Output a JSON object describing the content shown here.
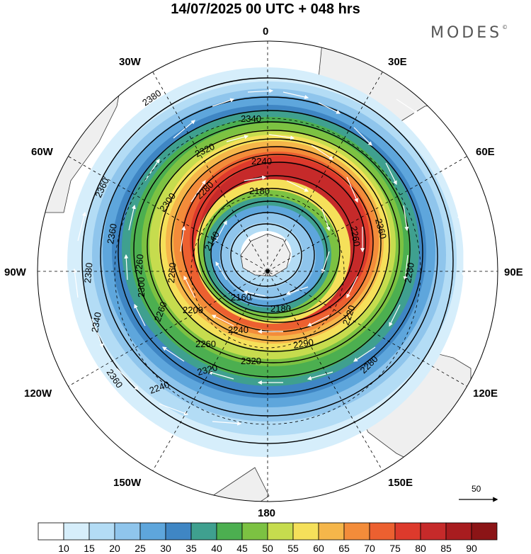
{
  "title": "14/07/2025  00 UTC  + 048 hrs",
  "brand": "MODES",
  "brand_mark": "©",
  "longitude_labels": {
    "l0": "0",
    "l30e": "30E",
    "l60e": "60E",
    "l90e": "90E",
    "l120e": "120E",
    "l150e": "150E",
    "l180": "180",
    "l150w": "150W",
    "l120w": "120W",
    "l90w": "90W",
    "l60w": "60W",
    "l30w": "30W"
  },
  "contour_labels": [
    "2380",
    "2340",
    "2320",
    "2240",
    "2180",
    "2360",
    "2360",
    "2300",
    "2280",
    "2140",
    "2360",
    "2260",
    "2300",
    "2160",
    "2180",
    "2200",
    "2240",
    "2260",
    "2320",
    "2320",
    "2290",
    "2280",
    "2340",
    "2360",
    "2240",
    "2260",
    "2220",
    "2260",
    "2380",
    "2280",
    "2260"
  ],
  "wind_scale": {
    "value": "50"
  },
  "colorbar": {
    "ticks": [
      "10",
      "15",
      "20",
      "25",
      "30",
      "35",
      "40",
      "45",
      "50",
      "55",
      "60",
      "65",
      "70",
      "75",
      "80",
      "85",
      "90"
    ],
    "colors": [
      "#ffffff",
      "#d6eefb",
      "#b3dcf5",
      "#8fc5ec",
      "#5ea6dc",
      "#3f86c4",
      "#3fa08f",
      "#4caf50",
      "#7cc242",
      "#c6dc4e",
      "#f5e05a",
      "#f5b64a",
      "#f38c3a",
      "#ec6030",
      "#dd3a2c",
      "#c62a2a",
      "#a81c1f",
      "#8b1416"
    ]
  }
}
